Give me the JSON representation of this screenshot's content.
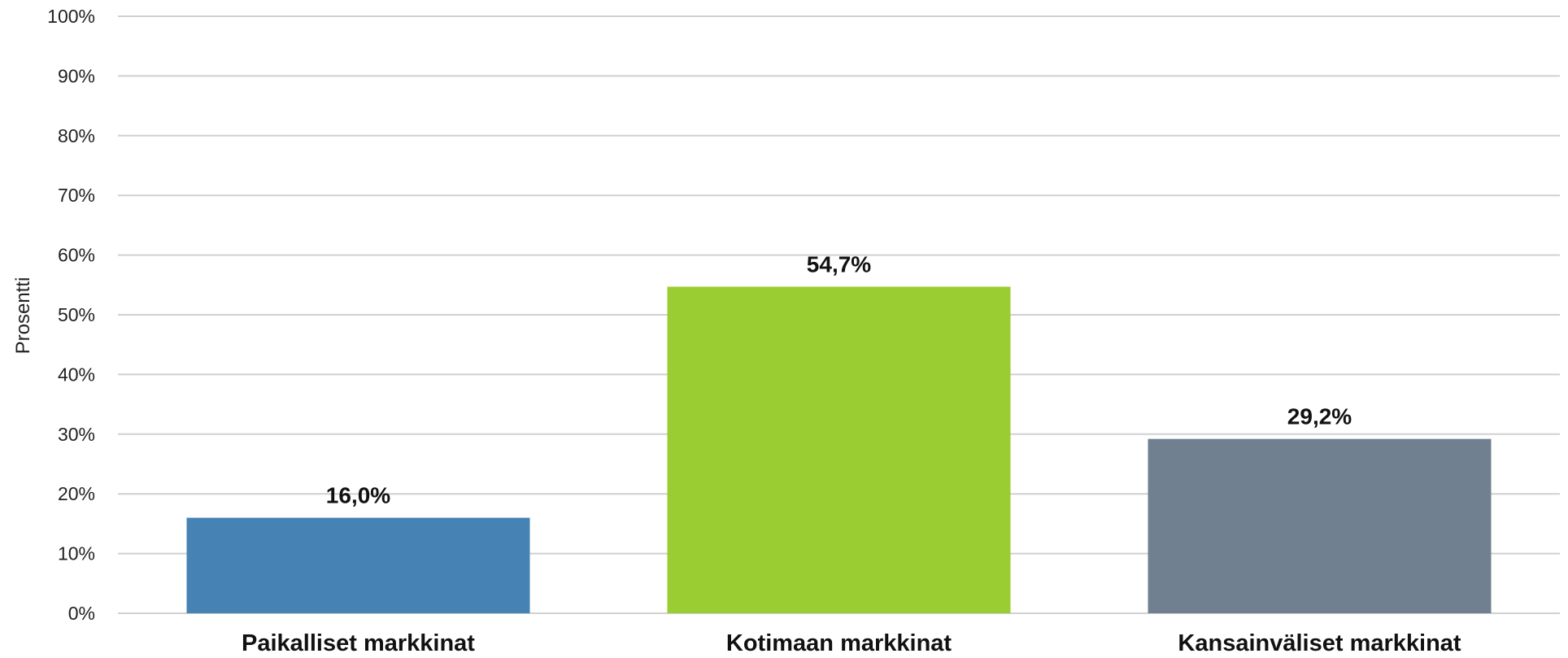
{
  "chart_data": {
    "type": "bar",
    "title": "",
    "xlabel": "",
    "ylabel": "Prosentti",
    "ylim": [
      0,
      100
    ],
    "yticks": [
      "0%",
      "10%",
      "20%",
      "30%",
      "40%",
      "50%",
      "60%",
      "70%",
      "80%",
      "90%",
      "100%"
    ],
    "grid": true,
    "legend": "none",
    "categories": [
      "Paikalliset markkinat",
      "Kotimaan markkinat",
      "Kansainväliset markkinat"
    ],
    "values": [
      16.0,
      54.7,
      29.2
    ],
    "data_labels": [
      "16,0%",
      "54,7%",
      "29,2%"
    ],
    "colors": [
      "#4682B4",
      "#9ACD32",
      "#708090"
    ]
  }
}
